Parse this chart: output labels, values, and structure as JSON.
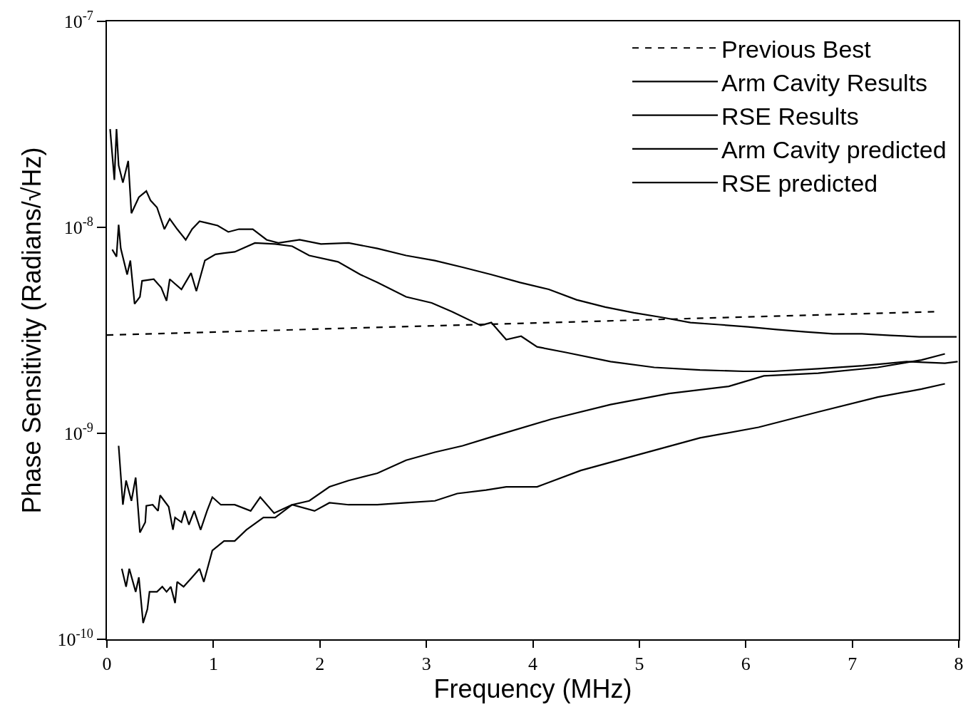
{
  "chart_data": {
    "type": "line",
    "xlabel": "Frequency (MHz)",
    "ylabel": "Phase Sensitivity (Radians/√Hz)",
    "log": "y",
    "grid": false,
    "legend": "top right",
    "marker": "none",
    "xlim": [
      0,
      8
    ],
    "xticks": [
      0,
      1,
      2,
      3,
      4,
      5,
      6,
      7,
      8
    ],
    "ylim": [
      1e-10,
      1e-07
    ],
    "yticks": [
      {
        "value": 1e-10,
        "label": "10$^{-10}$"
      },
      {
        "value": 1e-09,
        "label": "10$^{-9}$"
      },
      {
        "value": 1e-08,
        "label": "10$^{-8}$"
      },
      {
        "value": 1e-07,
        "label": "10$^{-7}$"
      }
    ],
    "series": [
      {
        "name": "Previous Best",
        "color": "#000000",
        "line_style": "dashed",
        "x": [
          0,
          7.8
        ],
        "values": [
          3e-09,
          3.9e-09
        ]
      },
      {
        "name": "Arm Cavity Results",
        "color": "#000000",
        "line_style": "solid",
        "x": [
          0.03,
          0.07,
          0.09,
          0.11,
          0.15,
          0.2,
          0.23,
          0.3,
          0.37,
          0.41,
          0.47,
          0.54,
          0.59,
          0.66,
          0.74,
          0.8,
          0.87,
          0.94,
          1.04,
          1.14,
          1.24,
          1.37,
          1.5,
          1.61,
          1.81,
          2.01,
          2.27,
          2.54,
          2.81,
          3.08,
          3.34,
          3.61,
          3.88,
          4.15,
          4.41,
          4.68,
          4.95,
          5.22,
          5.48,
          5.75,
          6.02,
          6.29,
          6.56,
          6.82,
          7.09,
          7.36,
          7.63,
          7.89,
          7.98
        ],
        "values": [
          3e-08,
          1.7e-08,
          3e-08,
          2e-08,
          1.65e-08,
          2.1e-08,
          1.17e-08,
          1.4e-08,
          1.5e-08,
          1.35e-08,
          1.25e-08,
          9.8e-09,
          1.1e-08,
          9.8e-09,
          8.7e-09,
          9.8e-09,
          1.07e-08,
          1.05e-08,
          1.02e-08,
          9.5e-09,
          9.8e-09,
          9.8e-09,
          8.7e-09,
          8.4e-09,
          8.7e-09,
          8.3e-09,
          8.4e-09,
          7.9e-09,
          7.3e-09,
          6.9e-09,
          6.4e-09,
          5.9e-09,
          5.4e-09,
          5e-09,
          4.45e-09,
          4.1e-09,
          3.85e-09,
          3.65e-09,
          3.45e-09,
          3.37e-09,
          3.29e-09,
          3.19e-09,
          3.11e-09,
          3.04e-09,
          3.04e-09,
          2.99e-09,
          2.94e-09,
          2.94e-09,
          2.94e-09
        ]
      },
      {
        "name": "RSE Results",
        "color": "#000000",
        "line_style": "solid",
        "x": [
          0.05,
          0.09,
          0.11,
          0.13,
          0.19,
          0.22,
          0.26,
          0.31,
          0.33,
          0.44,
          0.51,
          0.56,
          0.59,
          0.7,
          0.79,
          0.84,
          0.92,
          1.02,
          1.1,
          1.2,
          1.39,
          1.58,
          1.74,
          1.9,
          2.17,
          2.38,
          2.54,
          2.81,
          3.05,
          3.24,
          3.51,
          3.61,
          3.75,
          3.89,
          4.04,
          4.31,
          4.73,
          5.14,
          5.57,
          5.98,
          6.26,
          6.68,
          7.1,
          7.51,
          7.87,
          7.99
        ],
        "values": [
          7.8e-09,
          7.2e-09,
          1.03e-08,
          7.9e-09,
          5.9e-09,
          6.9e-09,
          4.25e-09,
          4.6e-09,
          5.5e-09,
          5.6e-09,
          5.1e-09,
          4.4e-09,
          5.6e-09,
          5e-09,
          6e-09,
          4.9e-09,
          6.9e-09,
          7.4e-09,
          7.5e-09,
          7.6e-09,
          8.4e-09,
          8.3e-09,
          8.1e-09,
          7.3e-09,
          6.8e-09,
          5.9e-09,
          5.4e-09,
          4.6e-09,
          4.3e-09,
          3.9e-09,
          3.34e-09,
          3.45e-09,
          2.85e-09,
          2.96e-09,
          2.63e-09,
          2.47e-09,
          2.23e-09,
          2.09e-09,
          2.03e-09,
          2e-09,
          2e-09,
          2.06e-09,
          2.13e-09,
          2.23e-09,
          2.19e-09,
          2.23e-09
        ]
      },
      {
        "name": "Arm Cavity predicted",
        "color": "#000000",
        "line_style": "solid",
        "x": [
          0.11,
          0.15,
          0.18,
          0.23,
          0.27,
          0.31,
          0.36,
          0.37,
          0.43,
          0.48,
          0.5,
          0.58,
          0.62,
          0.64,
          0.7,
          0.73,
          0.77,
          0.82,
          0.88,
          0.94,
          0.99,
          1.07,
          1.2,
          1.35,
          1.44,
          1.57,
          1.74,
          1.95,
          2.09,
          2.27,
          2.54,
          2.81,
          3.08,
          3.29,
          3.56,
          3.75,
          4.04,
          4.45,
          5.0,
          5.57,
          6.12,
          6.68,
          7.24,
          7.65,
          7.87
        ],
        "values": [
          8.7e-10,
          4.5e-10,
          5.9e-10,
          4.7e-10,
          6.1e-10,
          3.3e-10,
          3.7e-10,
          4.45e-10,
          4.5e-10,
          4.2e-10,
          5e-10,
          4.4e-10,
          3.4e-10,
          3.9e-10,
          3.7e-10,
          4.2e-10,
          3.6e-10,
          4.2e-10,
          3.4e-10,
          4.2e-10,
          4.9e-10,
          4.5e-10,
          4.5e-10,
          4.2e-10,
          4.9e-10,
          4.1e-10,
          4.5e-10,
          4.2e-10,
          4.6e-10,
          4.5e-10,
          4.5e-10,
          4.6e-10,
          4.7e-10,
          5.1e-10,
          5.3e-10,
          5.5e-10,
          5.5e-10,
          6.6e-10,
          7.9e-10,
          9.5e-10,
          1.07e-09,
          1.27e-09,
          1.5e-09,
          1.64e-09,
          1.74e-09
        ]
      },
      {
        "name": "RSE predicted",
        "color": "#000000",
        "line_style": "solid",
        "x": [
          0.14,
          0.18,
          0.21,
          0.27,
          0.3,
          0.34,
          0.38,
          0.4,
          0.47,
          0.52,
          0.56,
          0.6,
          0.64,
          0.66,
          0.72,
          0.8,
          0.87,
          0.91,
          0.99,
          1.1,
          1.2,
          1.31,
          1.47,
          1.58,
          1.74,
          1.9,
          2.09,
          2.27,
          2.54,
          2.81,
          3.08,
          3.34,
          3.61,
          4.17,
          4.73,
          5.28,
          5.84,
          6.17,
          6.68,
          7.24,
          7.65,
          7.87
        ],
        "values": [
          2.2e-10,
          1.8e-10,
          2.2e-10,
          1.7e-10,
          2e-10,
          1.2e-10,
          1.4e-10,
          1.7e-10,
          1.7e-10,
          1.8e-10,
          1.7e-10,
          1.8e-10,
          1.5e-10,
          1.9e-10,
          1.8e-10,
          2e-10,
          2.2e-10,
          1.9e-10,
          2.7e-10,
          3e-10,
          3e-10,
          3.4e-10,
          3.9e-10,
          3.9e-10,
          4.5e-10,
          4.7e-10,
          5.5e-10,
          5.9e-10,
          6.4e-10,
          7.4e-10,
          8.1e-10,
          8.7e-10,
          9.6e-10,
          1.17e-09,
          1.38e-09,
          1.56e-09,
          1.69e-09,
          1.9e-09,
          1.96e-09,
          2.09e-09,
          2.27e-09,
          2.43e-09
        ]
      }
    ]
  }
}
